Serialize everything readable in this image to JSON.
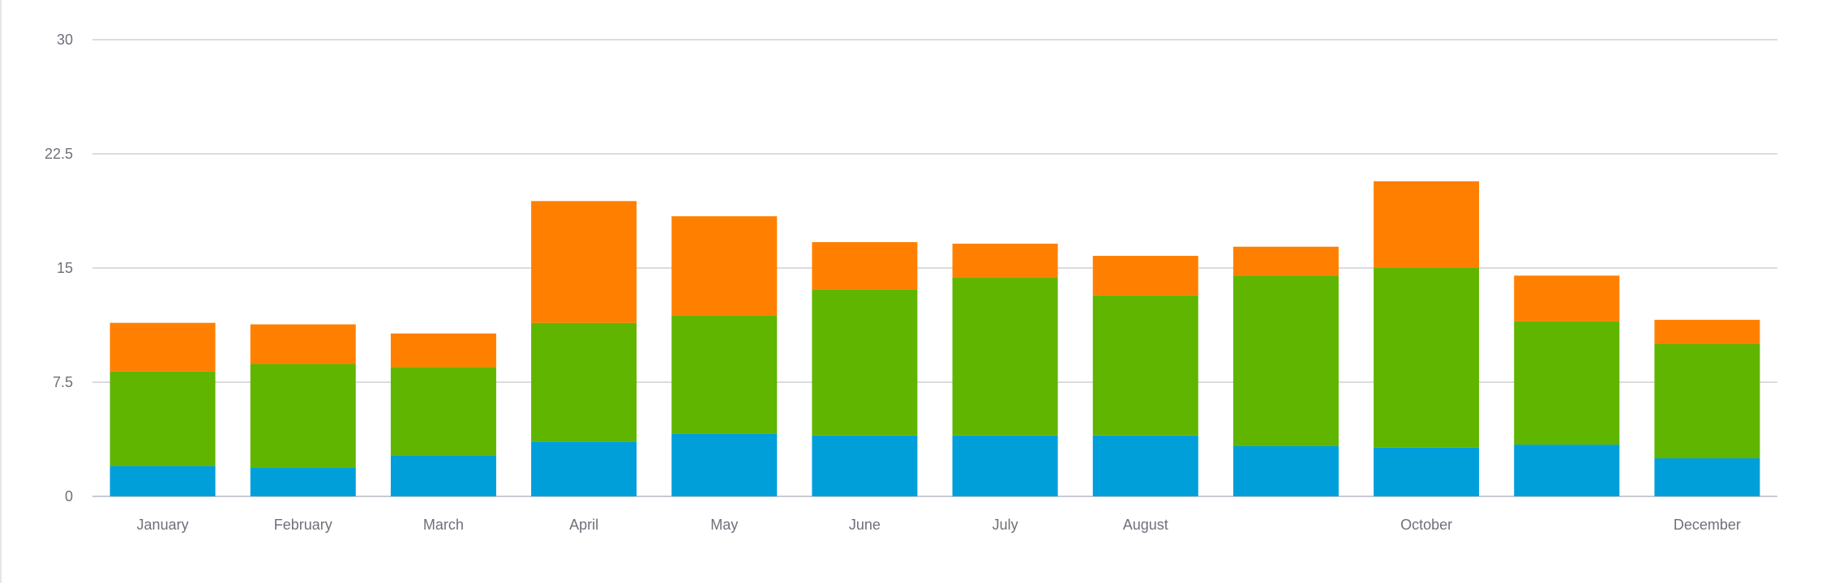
{
  "chart_data": {
    "type": "bar",
    "stacked": true,
    "categories": [
      "January",
      "February",
      "March",
      "April",
      "May",
      "June",
      "July",
      "August",
      "",
      "October",
      "",
      "December"
    ],
    "series": [
      {
        "color": "#009fd9",
        "values": [
          2.0,
          1.9,
          2.7,
          3.6,
          4.1,
          4.0,
          4.0,
          4.0,
          3.3,
          3.2,
          3.4,
          2.5
        ]
      },
      {
        "color": "#5fb500",
        "values": [
          6.2,
          6.8,
          5.8,
          7.8,
          7.8,
          9.6,
          10.4,
          9.2,
          11.2,
          11.8,
          8.1,
          7.5
        ]
      },
      {
        "color": "#ff8000",
        "values": [
          3.2,
          2.6,
          2.2,
          8.0,
          6.5,
          3.1,
          2.2,
          2.6,
          1.9,
          5.7,
          3.0,
          1.6
        ]
      }
    ],
    "ylim": [
      0,
      30
    ],
    "yticks": [
      0,
      7.5,
      15,
      22.5,
      30
    ],
    "ytick_labels": [
      "0",
      "7.5",
      "15",
      "22.5",
      "30"
    ],
    "grid": true,
    "title": "",
    "xlabel": "",
    "ylabel": ""
  }
}
